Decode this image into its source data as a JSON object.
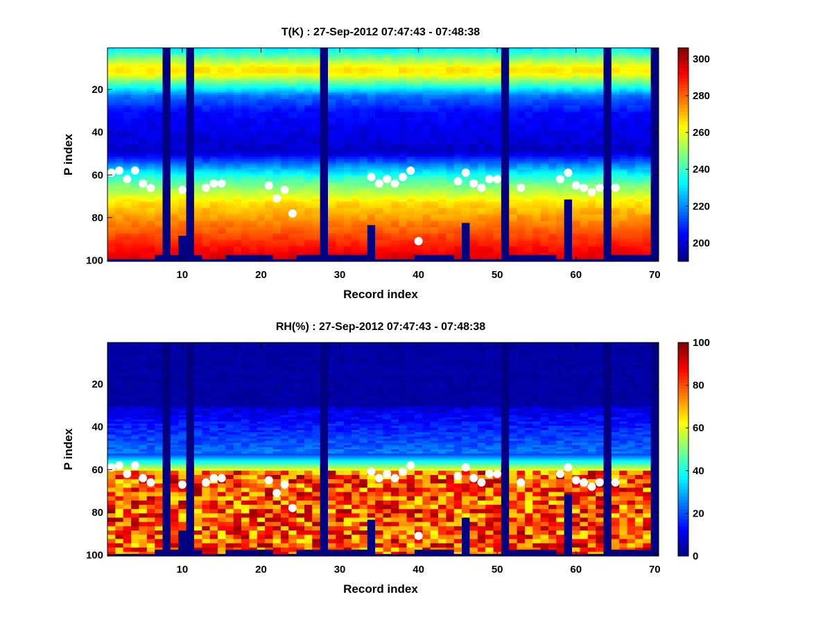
{
  "chart_data": [
    {
      "type": "heatmap",
      "title": "T(K) : 27-Sep-2012 07:47:43 - 07:48:38",
      "xlabel": "Record index",
      "ylabel": "P index",
      "xlim": [
        0.5,
        70.5
      ],
      "ylim": [
        0.5,
        100.5
      ],
      "y_direction": "reversed",
      "xticks": [
        10,
        20,
        30,
        40,
        50,
        60,
        70
      ],
      "yticks": [
        20,
        40,
        60,
        80,
        100
      ],
      "colormap": "jet",
      "clim": [
        190,
        306
      ],
      "colorbar_ticks": [
        200,
        220,
        240,
        260,
        280,
        300
      ],
      "variable": "T",
      "marker_points_y": [
        59,
        58,
        62,
        58,
        64,
        66,
        null,
        null,
        null,
        67,
        null,
        null,
        66,
        64,
        64,
        null,
        null,
        null,
        null,
        null,
        65,
        71,
        67,
        78,
        null,
        null,
        null,
        null,
        null,
        null,
        null,
        null,
        null,
        61,
        64,
        62,
        64,
        61,
        58,
        91,
        null,
        null,
        null,
        null,
        63,
        59,
        64,
        66,
        62,
        62,
        null,
        null,
        66,
        null,
        null,
        null,
        null,
        62,
        59,
        65,
        66,
        68,
        66,
        null,
        66,
        null,
        null,
        null,
        null,
        null
      ],
      "missing_records": [
        8,
        11,
        28,
        51,
        64,
        70
      ]
    },
    {
      "type": "heatmap",
      "title": "RH(%) : 27-Sep-2012 07:47:43 - 07:48:38",
      "xlabel": "Record index",
      "ylabel": "P index",
      "xlim": [
        0.5,
        70.5
      ],
      "ylim": [
        0.5,
        100.5
      ],
      "y_direction": "reversed",
      "xticks": [
        10,
        20,
        30,
        40,
        50,
        60,
        70
      ],
      "yticks": [
        20,
        40,
        60,
        80,
        100
      ],
      "colormap": "jet",
      "clim": [
        0,
        100
      ],
      "colorbar_ticks": [
        0,
        20,
        40,
        60,
        80,
        100
      ],
      "variable": "RH",
      "marker_points_y": [
        59,
        58,
        62,
        58,
        64,
        66,
        null,
        null,
        null,
        67,
        null,
        null,
        66,
        64,
        64,
        null,
        null,
        null,
        null,
        null,
        65,
        71,
        67,
        78,
        null,
        null,
        null,
        null,
        null,
        null,
        null,
        null,
        null,
        61,
        64,
        62,
        64,
        61,
        58,
        91,
        null,
        null,
        null,
        null,
        63,
        59,
        64,
        66,
        62,
        62,
        null,
        null,
        66,
        null,
        null,
        null,
        null,
        62,
        59,
        65,
        66,
        68,
        66,
        null,
        66,
        null,
        null,
        null,
        null,
        null
      ],
      "missing_records": [
        8,
        11,
        28,
        51,
        64,
        70
      ]
    }
  ],
  "profile": {
    "record_bottom": [
      99,
      99,
      99,
      99,
      99,
      99,
      97,
      0,
      97,
      88,
      0,
      97,
      99,
      99,
      99,
      97,
      97,
      97,
      97,
      97,
      97,
      99,
      99,
      99,
      97,
      97,
      97,
      0,
      97,
      97,
      97,
      97,
      97,
      83,
      99,
      99,
      99,
      99,
      99,
      97,
      97,
      97,
      97,
      97,
      99,
      82,
      99,
      99,
      99,
      99,
      0,
      97,
      97,
      97,
      97,
      97,
      97,
      99,
      71,
      99,
      99,
      99,
      99,
      0,
      97,
      97,
      97,
      97,
      97,
      0
    ]
  }
}
